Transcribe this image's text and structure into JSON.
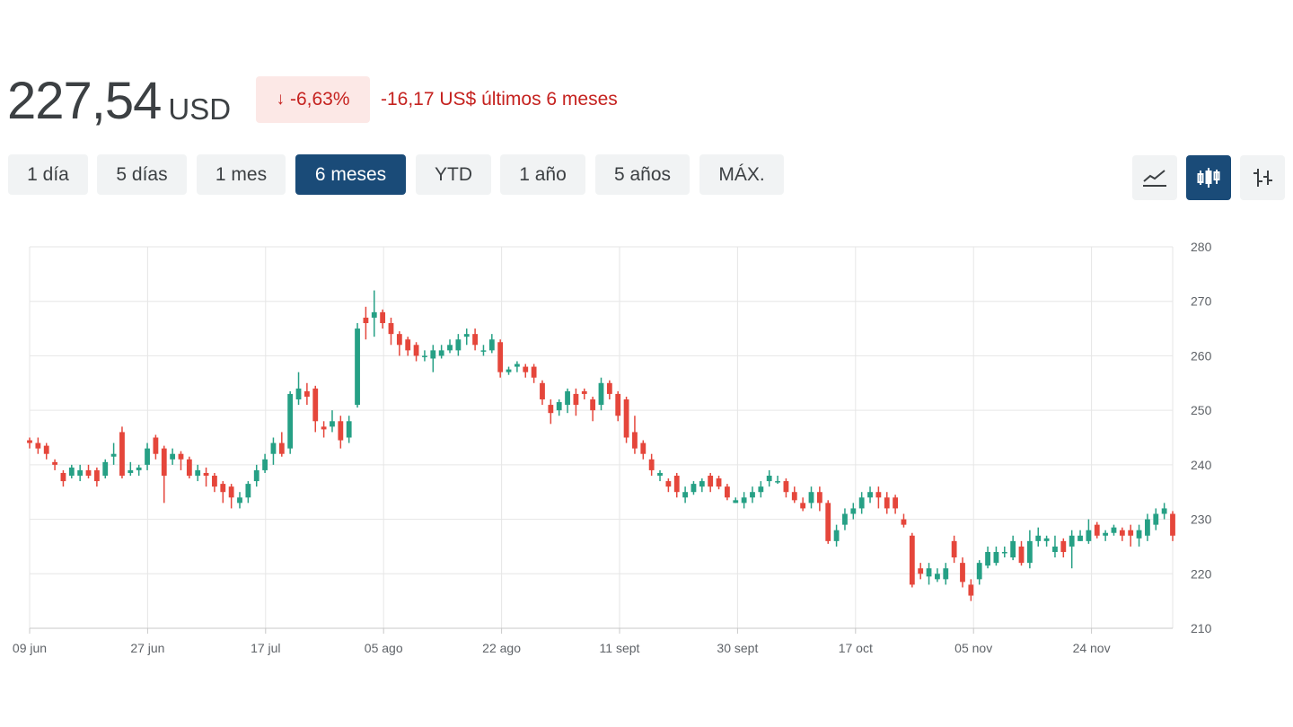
{
  "header": {
    "price": "227,54",
    "currency": "USD",
    "change_arrow": "↓",
    "change_percent": "-6,63%",
    "change_text": "-16,17 US$ últimos 6 meses"
  },
  "ranges": [
    {
      "label": "1 día",
      "active": false
    },
    {
      "label": "5 días",
      "active": false
    },
    {
      "label": "1 mes",
      "active": false
    },
    {
      "label": "6 meses",
      "active": true
    },
    {
      "label": "YTD",
      "active": false
    },
    {
      "label": "1 año",
      "active": false
    },
    {
      "label": "5 años",
      "active": false
    },
    {
      "label": "MÁX.",
      "active": false
    }
  ],
  "chart_types": [
    {
      "icon": "line-chart-icon",
      "active": false
    },
    {
      "icon": "candlestick-chart-icon",
      "active": true
    },
    {
      "icon": "ohlc-chart-icon",
      "active": false
    }
  ],
  "colors": {
    "up": "#26a085",
    "down": "#e5463b",
    "active_button": "#1a4b78",
    "negative_text": "#c5221f",
    "grid": "#e6e6e6"
  },
  "chart_data": {
    "type": "candlestick",
    "ylim": [
      210,
      280
    ],
    "y_ticks": [
      "280",
      "270",
      "260",
      "250",
      "240",
      "230",
      "220",
      "210"
    ],
    "x_ticks": [
      "09 jun",
      "27 jun",
      "17 jul",
      "05 ago",
      "22 ago",
      "11 sept",
      "30 sept",
      "17 oct",
      "05 nov",
      "24 nov"
    ],
    "grid": true,
    "candles": [
      [
        244.5,
        244,
        245,
        243
      ],
      [
        244,
        243,
        245,
        242
      ],
      [
        243.5,
        242,
        244,
        241
      ],
      [
        240.5,
        240,
        241,
        239
      ],
      [
        238.5,
        237,
        239,
        236
      ],
      [
        238,
        239.5,
        240,
        237.5
      ],
      [
        238,
        239,
        240,
        237
      ],
      [
        239,
        238,
        240,
        237.5
      ],
      [
        239,
        237,
        239.5,
        236
      ],
      [
        238,
        240.5,
        241,
        237.5
      ],
      [
        241.5,
        242,
        244,
        240
      ],
      [
        246,
        238,
        247,
        237.5
      ],
      [
        238.5,
        239,
        240.5,
        238
      ],
      [
        239,
        239.5,
        240,
        238
      ],
      [
        240,
        243,
        244,
        239
      ],
      [
        245,
        242,
        245.5,
        241
      ],
      [
        243,
        238,
        243.5,
        233
      ],
      [
        241,
        242,
        243,
        240
      ],
      [
        242,
        241,
        242.5,
        239
      ],
      [
        241,
        238,
        241.5,
        237.5
      ],
      [
        238,
        239,
        240,
        237
      ],
      [
        238.5,
        238,
        239.5,
        236
      ],
      [
        238,
        236,
        238.5,
        235
      ],
      [
        236.5,
        235,
        237,
        233
      ],
      [
        236,
        234,
        236.5,
        232
      ],
      [
        233,
        234,
        235,
        232
      ],
      [
        234,
        236.5,
        237,
        233
      ],
      [
        237,
        239,
        240,
        236
      ],
      [
        239,
        241,
        242,
        238.5
      ],
      [
        242,
        244,
        245,
        240
      ],
      [
        244,
        242,
        246,
        241.5
      ],
      [
        243,
        253,
        253.5,
        242
      ],
      [
        252,
        254,
        257,
        251
      ],
      [
        253.5,
        252.5,
        255,
        251
      ],
      [
        254,
        248,
        254.5,
        246
      ],
      [
        247,
        246.5,
        248,
        245
      ],
      [
        247,
        248,
        250,
        246
      ],
      [
        248,
        244.5,
        249,
        243
      ],
      [
        245,
        248,
        249,
        244
      ],
      [
        251,
        265,
        266,
        250.5
      ],
      [
        267,
        266,
        269,
        263
      ],
      [
        267,
        268,
        272,
        263.5
      ],
      [
        268,
        266,
        268.5,
        265
      ],
      [
        266,
        264,
        267,
        262
      ],
      [
        264,
        262,
        264.5,
        260
      ],
      [
        263,
        261,
        263.5,
        260
      ],
      [
        262,
        260,
        262.5,
        259
      ],
      [
        260,
        260,
        261,
        259
      ],
      [
        259.5,
        261,
        262,
        257
      ],
      [
        260,
        261,
        262,
        259.5
      ],
      [
        261,
        262,
        263,
        260.5
      ],
      [
        261,
        263,
        264,
        260
      ],
      [
        263.5,
        264,
        265,
        262
      ],
      [
        264,
        262,
        265,
        261
      ],
      [
        261,
        261,
        262,
        260
      ],
      [
        261,
        263,
        264,
        260.5
      ],
      [
        262.5,
        257,
        263,
        256
      ],
      [
        257,
        257.5,
        258,
        256.5
      ],
      [
        258,
        258.5,
        259,
        257
      ],
      [
        258,
        257,
        258.5,
        256
      ],
      [
        258,
        256,
        258.5,
        255
      ],
      [
        255,
        252,
        255.5,
        251
      ],
      [
        251,
        249.5,
        252,
        247.5
      ],
      [
        250,
        251.5,
        252,
        249
      ],
      [
        251,
        253.5,
        254,
        249.5
      ],
      [
        253,
        251,
        254,
        249
      ],
      [
        253.5,
        253,
        254,
        252
      ],
      [
        252,
        250,
        252.5,
        248
      ],
      [
        251,
        255,
        256,
        250
      ],
      [
        255,
        253,
        255.5,
        252
      ],
      [
        253,
        249,
        253.5,
        248
      ],
      [
        252,
        245,
        252.5,
        244
      ],
      [
        246,
        243,
        249,
        242
      ],
      [
        244,
        242,
        244.5,
        241
      ],
      [
        241,
        239,
        242,
        238
      ],
      [
        238,
        238.5,
        239,
        237
      ],
      [
        237,
        236,
        237.5,
        235
      ],
      [
        238,
        235,
        238.5,
        234
      ],
      [
        234,
        235,
        236,
        233
      ],
      [
        235,
        236.5,
        237,
        234.5
      ],
      [
        236,
        237,
        237.5,
        235
      ],
      [
        238,
        236,
        238.5,
        235
      ],
      [
        237.5,
        236,
        238,
        235.5
      ],
      [
        236,
        234,
        236.5,
        233.5
      ],
      [
        233,
        233.5,
        234,
        233
      ],
      [
        233,
        234,
        235,
        232
      ],
      [
        234,
        235,
        236,
        233
      ],
      [
        235,
        236,
        237,
        234
      ],
      [
        237,
        238,
        239,
        236
      ],
      [
        237,
        237,
        238,
        236.5
      ],
      [
        237,
        235,
        237.5,
        234
      ],
      [
        235,
        233.5,
        236,
        233
      ],
      [
        233,
        232,
        234,
        231.5
      ],
      [
        233,
        235,
        236,
        232
      ],
      [
        235,
        233,
        236,
        231.5
      ],
      [
        233,
        226,
        233.5,
        225.5
      ],
      [
        226,
        228,
        229,
        225
      ],
      [
        229,
        231,
        232,
        228
      ],
      [
        231,
        232,
        233,
        230
      ],
      [
        232,
        234,
        235,
        231
      ],
      [
        234,
        235,
        236,
        233
      ],
      [
        235,
        234,
        236,
        232
      ],
      [
        234,
        232,
        235,
        231
      ],
      [
        234,
        232,
        234.5,
        231
      ],
      [
        230,
        229,
        231,
        228.5
      ],
      [
        227,
        218,
        227.5,
        217.5
      ],
      [
        221,
        220,
        222,
        219
      ],
      [
        219.5,
        221,
        222,
        218
      ],
      [
        219,
        220,
        221,
        218.5
      ],
      [
        219,
        221,
        222,
        218
      ],
      [
        226,
        223,
        227,
        222
      ],
      [
        222,
        218.5,
        223,
        217.5
      ],
      [
        218,
        216,
        219,
        215
      ],
      [
        219,
        222,
        222.5,
        218
      ],
      [
        221.5,
        224,
        225,
        221
      ],
      [
        222,
        224,
        225,
        221.5
      ],
      [
        224,
        224,
        225,
        223
      ],
      [
        223,
        226,
        227,
        222.5
      ],
      [
        225,
        222,
        226,
        221.5
      ],
      [
        222,
        226,
        228,
        221
      ],
      [
        226,
        227,
        228.5,
        225
      ],
      [
        226,
        226.5,
        227,
        225
      ],
      [
        224,
        225,
        227,
        223
      ],
      [
        226,
        224,
        226.5,
        223
      ],
      [
        225,
        227,
        228,
        221
      ],
      [
        226,
        227,
        228,
        226
      ],
      [
        226,
        228,
        230,
        225.5
      ],
      [
        229,
        227,
        229.5,
        226.5
      ],
      [
        227,
        227.5,
        228,
        226
      ],
      [
        227.5,
        228.5,
        229,
        227
      ],
      [
        228,
        227,
        228.5,
        226
      ],
      [
        228,
        227,
        229,
        225
      ],
      [
        226.5,
        228,
        229,
        225
      ],
      [
        227,
        230,
        231,
        226
      ],
      [
        229,
        231,
        232,
        228
      ],
      [
        231,
        232,
        233,
        230
      ],
      [
        231,
        227,
        231.5,
        226
      ]
    ]
  }
}
